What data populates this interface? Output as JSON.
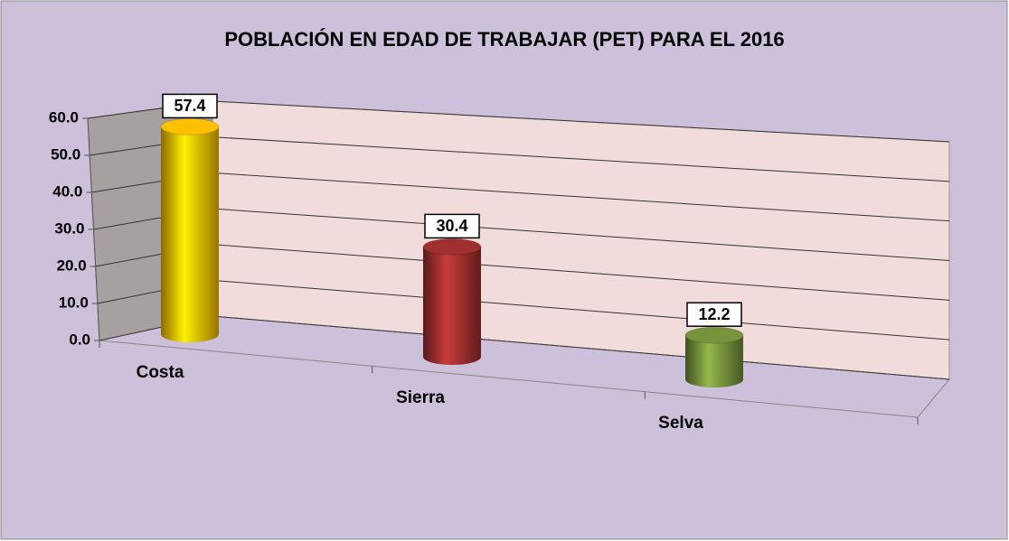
{
  "chart_data": {
    "type": "bar3d",
    "title": "POBLACIÓN EN EDAD DE TRABAJAR (PET) PARA EL 2016",
    "categories": [
      "Costa",
      "Sierra",
      "Selva"
    ],
    "values": [
      57.4,
      30.4,
      12.2
    ],
    "colors": [
      "#ffc000",
      "#a0302f",
      "#77933c"
    ],
    "ylim": [
      0,
      60
    ],
    "yticks": [
      {
        "value": 0,
        "label": "0.0"
      },
      {
        "value": 10,
        "label": "10.0"
      },
      {
        "value": 20,
        "label": "20.0"
      },
      {
        "value": 30,
        "label": "30.0"
      },
      {
        "value": 40,
        "label": "40.0"
      },
      {
        "value": 50,
        "label": "50.0"
      },
      {
        "value": 60,
        "label": "60.0"
      }
    ],
    "grid": true
  }
}
